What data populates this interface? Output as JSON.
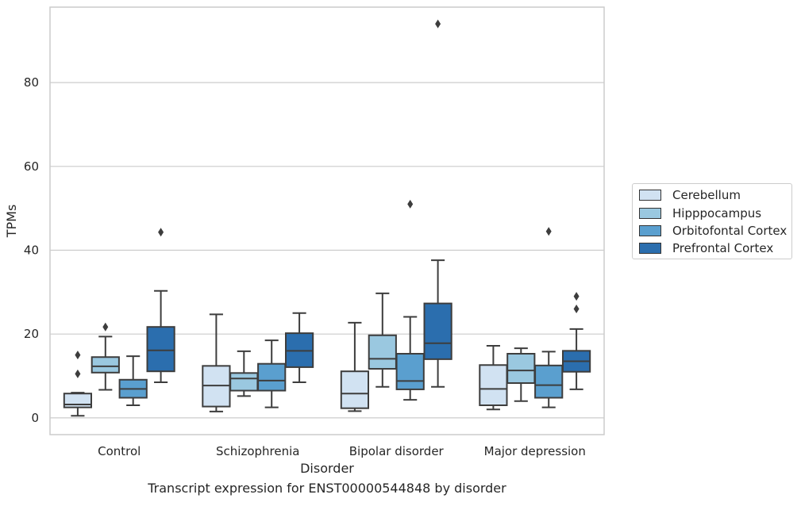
{
  "chart_data": {
    "type": "box",
    "xlabel": "Disorder",
    "ylabel": "TPMs",
    "caption": "Transcript expression for ENST00000544848 by disorder",
    "ylim": [
      -4,
      98
    ],
    "yticks": [
      0,
      20,
      40,
      60,
      80
    ],
    "grid": true,
    "legend_position": "right, outside",
    "categories": [
      "Control",
      "Schizophrenia",
      "Bipolar disorder",
      "Major depression"
    ],
    "series": [
      {
        "name": "Cerebellum",
        "color": "#d1e2f2",
        "boxes": [
          {
            "whisker_low": 0.5,
            "q1": 2.5,
            "median": 3.2,
            "q3": 5.8,
            "whisker_high": 6.0,
            "outliers": [
              10.5,
              15.0
            ]
          },
          {
            "whisker_low": 1.5,
            "q1": 2.7,
            "median": 7.7,
            "q3": 12.4,
            "whisker_high": 24.7,
            "outliers": []
          },
          {
            "whisker_low": 1.6,
            "q1": 2.3,
            "median": 5.8,
            "q3": 11.1,
            "whisker_high": 22.7,
            "outliers": []
          },
          {
            "whisker_low": 2.0,
            "q1": 3.0,
            "median": 6.9,
            "q3": 12.6,
            "whisker_high": 17.2,
            "outliers": []
          }
        ]
      },
      {
        "name": "Hipppocampus",
        "color": "#9ac8e0",
        "boxes": [
          {
            "whisker_low": 6.7,
            "q1": 10.8,
            "median": 12.3,
            "q3": 14.5,
            "whisker_high": 19.4,
            "outliers": [
              21.7
            ]
          },
          {
            "whisker_low": 5.2,
            "q1": 6.5,
            "median": 9.4,
            "q3": 10.7,
            "whisker_high": 15.9,
            "outliers": []
          },
          {
            "whisker_low": 7.4,
            "q1": 11.7,
            "median": 14.1,
            "q3": 19.7,
            "whisker_high": 29.7,
            "outliers": []
          },
          {
            "whisker_low": 4.0,
            "q1": 8.3,
            "median": 11.3,
            "q3": 15.3,
            "whisker_high": 16.6,
            "outliers": []
          }
        ]
      },
      {
        "name": "Orbitofontal Cortex",
        "color": "#5a9fcf",
        "boxes": [
          {
            "whisker_low": 3.0,
            "q1": 4.8,
            "median": 6.9,
            "q3": 9.1,
            "whisker_high": 14.7,
            "outliers": []
          },
          {
            "whisker_low": 2.5,
            "q1": 6.5,
            "median": 8.9,
            "q3": 12.9,
            "whisker_high": 18.5,
            "outliers": []
          },
          {
            "whisker_low": 4.3,
            "q1": 6.8,
            "median": 8.8,
            "q3": 15.3,
            "whisker_high": 24.1,
            "outliers": [
              51.0
            ]
          },
          {
            "whisker_low": 2.5,
            "q1": 4.8,
            "median": 7.8,
            "q3": 12.5,
            "whisker_high": 15.8,
            "outliers": [
              44.5
            ]
          }
        ]
      },
      {
        "name": "Prefrontal Cortex",
        "color": "#2b6eae",
        "boxes": [
          {
            "whisker_low": 8.5,
            "q1": 11.1,
            "median": 16.1,
            "q3": 21.7,
            "whisker_high": 30.3,
            "outliers": [
              44.3
            ]
          },
          {
            "whisker_low": 8.5,
            "q1": 12.1,
            "median": 16.0,
            "q3": 20.2,
            "whisker_high": 25.0,
            "outliers": []
          },
          {
            "whisker_low": 7.4,
            "q1": 14.0,
            "median": 17.8,
            "q3": 27.3,
            "whisker_high": 37.6,
            "outliers": [
              94.0
            ]
          },
          {
            "whisker_low": 6.8,
            "q1": 11.0,
            "median": 13.5,
            "q3": 16.0,
            "whisker_high": 21.2,
            "outliers": [
              26.0,
              29.0
            ]
          }
        ]
      }
    ]
  }
}
